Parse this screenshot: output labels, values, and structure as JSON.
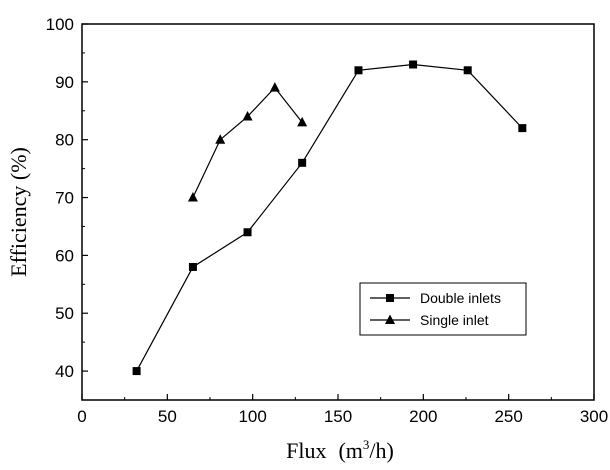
{
  "chart_data": {
    "type": "line",
    "title": "",
    "xlabel": "Flux",
    "xlabel_unit_open": "(m",
    "xlabel_unit_sup": "3",
    "xlabel_unit_close": "/h)",
    "ylabel": "Efficiency  (%)",
    "xlim": [
      0,
      300
    ],
    "ylim": [
      35,
      100
    ],
    "xticks": [
      0,
      50,
      100,
      150,
      200,
      250,
      300
    ],
    "yticks": [
      40,
      50,
      60,
      70,
      80,
      90,
      100
    ],
    "grid": false,
    "legend_position": "bottom-right",
    "series": [
      {
        "name": "Double inlets",
        "marker": "square",
        "color": "#000000",
        "x": [
          32,
          65,
          97,
          129,
          162,
          194,
          226,
          258
        ],
        "y": [
          40,
          58,
          64,
          76,
          92,
          93,
          92,
          82
        ]
      },
      {
        "name": "Single inlet",
        "marker": "triangle",
        "color": "#000000",
        "x": [
          65,
          81,
          97,
          113,
          129
        ],
        "y": [
          70,
          80,
          84,
          89,
          83
        ]
      }
    ]
  }
}
